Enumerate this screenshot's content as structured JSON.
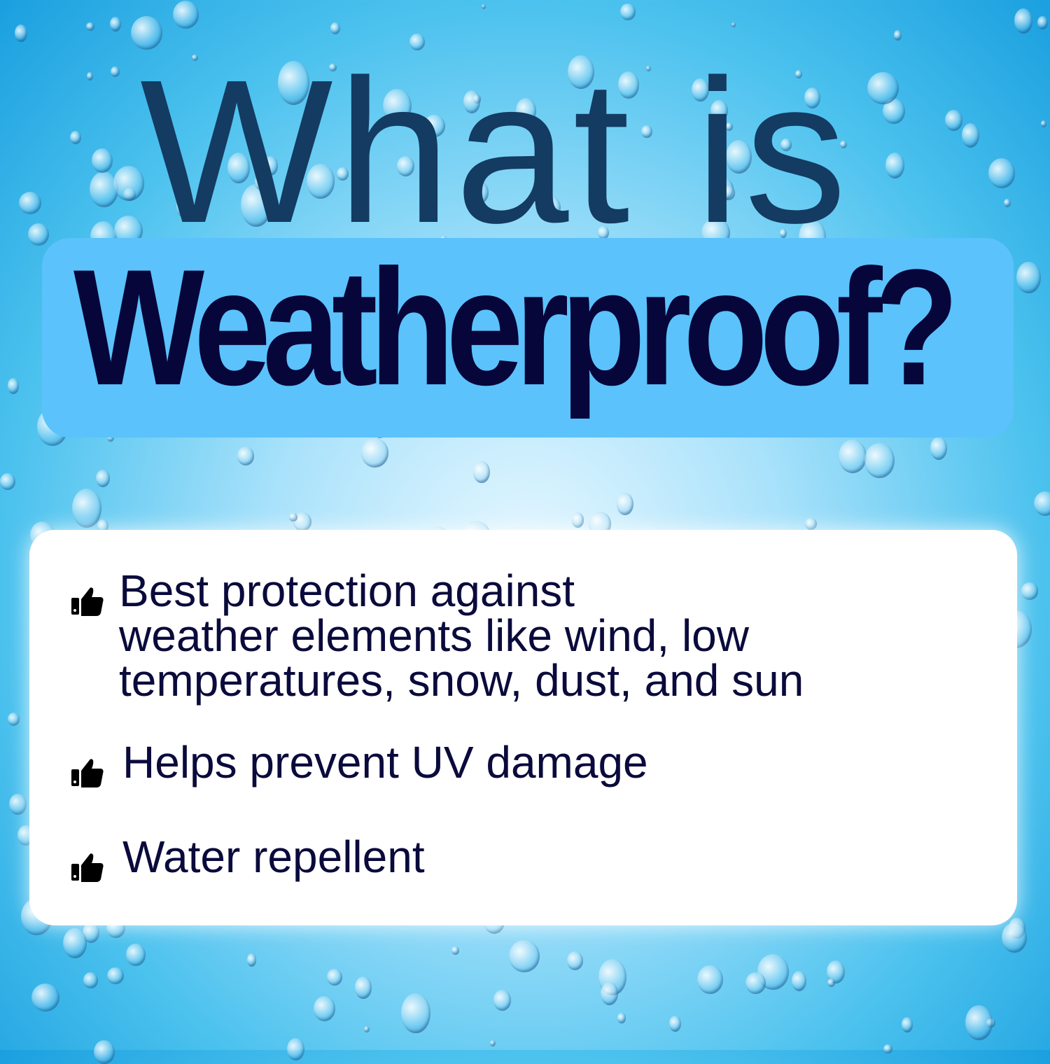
{
  "heading": {
    "line1": "What is",
    "line2": "Weatherproof?"
  },
  "colors": {
    "heading_line1": "#143b62",
    "heading_line2": "#07063a",
    "highlight_box": "#5bc2fb",
    "card": "#ffffff",
    "text": "#0a0a3c"
  },
  "features": [
    {
      "icon": "thumbs-up-icon",
      "text": "Best protection against\nweather elements like wind, low\ntemperatures, snow, dust, and sun"
    },
    {
      "icon": "thumbs-up-icon",
      "text": "Helps prevent UV damage"
    },
    {
      "icon": "thumbs-up-icon",
      "text": "Water repellent"
    }
  ]
}
